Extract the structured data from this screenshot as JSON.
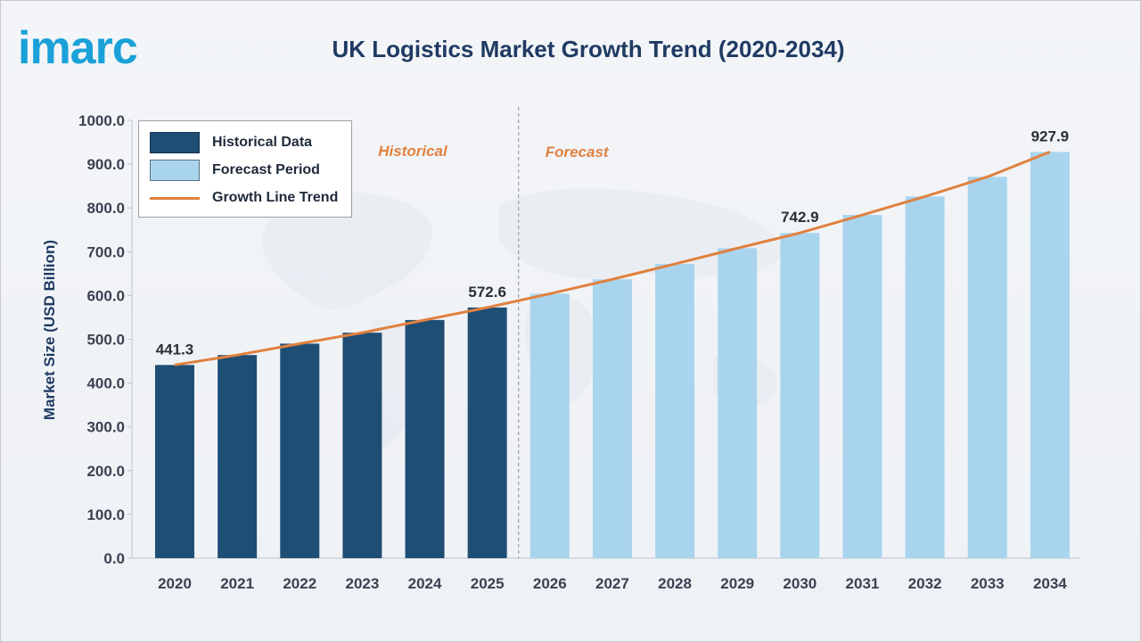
{
  "logo": {
    "text": "imarc"
  },
  "chart_data": {
    "type": "bar",
    "title": "UK Logistics Market Growth Trend (2020-2034)",
    "xlabel": "",
    "ylabel": "Market Size (USD Billion)",
    "ylim": [
      0,
      1000
    ],
    "y_ticks": [
      "0.0",
      "100.0",
      "200.0",
      "300.0",
      "400.0",
      "500.0",
      "600.0",
      "700.0",
      "800.0",
      "900.0",
      "1000.0"
    ],
    "categories": [
      "2020",
      "2021",
      "2022",
      "2023",
      "2024",
      "2025",
      "2026",
      "2027",
      "2028",
      "2029",
      "2030",
      "2031",
      "2032",
      "2033",
      "2034"
    ],
    "series": [
      {
        "name": "Historical Data",
        "color": "#1f4e75",
        "values": [
          441.3,
          464,
          490,
          515,
          544,
          572.6,
          null,
          null,
          null,
          null,
          null,
          null,
          null,
          null,
          null
        ]
      },
      {
        "name": "Forecast Period",
        "color": "#a9d4ee",
        "values": [
          null,
          null,
          null,
          null,
          null,
          null,
          604,
          637,
          672,
          708,
          742.9,
          784,
          826,
          871,
          927.9
        ]
      },
      {
        "name": "Growth Line Trend",
        "type": "line",
        "color": "#e0813f",
        "values": [
          441.3,
          464,
          490,
          515,
          544,
          572.6,
          604,
          637,
          672,
          708,
          742.9,
          784,
          826,
          871,
          927.9
        ]
      }
    ],
    "data_labels": [
      {
        "category": "2020",
        "text": "441.3"
      },
      {
        "category": "2025",
        "text": "572.6"
      },
      {
        "category": "2030",
        "text": "742.9"
      },
      {
        "category": "2034",
        "text": "927.9"
      }
    ],
    "annotations": {
      "historical": "Historical",
      "forecast": "Forecast"
    },
    "legend_position": "top-left",
    "grid": false
  }
}
